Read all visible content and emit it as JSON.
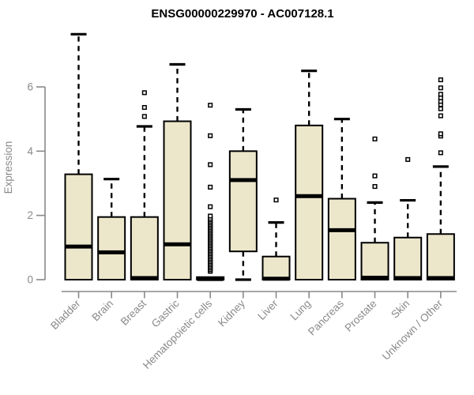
{
  "chart_data": {
    "type": "boxplot",
    "title": "ENSG00000229970 - AC007128.1",
    "ylabel": "Expression",
    "xlabel": "",
    "yticks": [
      0,
      2,
      4,
      6
    ],
    "ylim": [
      -0.4,
      7.9
    ],
    "grid": false,
    "legend": false,
    "categories": [
      "Bladder",
      "Brain",
      "Breast",
      "Gastric",
      "Hematopoietic cells",
      "Kidney",
      "Liver",
      "Lung",
      "Pancreas",
      "Prostate",
      "Skin",
      "Unknown / Other"
    ],
    "boxes": [
      {
        "category": "Bladder",
        "low": 0,
        "q1": 0,
        "median": 1.03,
        "q3": 3.28,
        "high": 7.64,
        "outliers": []
      },
      {
        "category": "Brain",
        "low": 0,
        "q1": 0,
        "median": 0.85,
        "q3": 1.95,
        "high": 3.13,
        "outliers": []
      },
      {
        "category": "Breast",
        "low": 0,
        "q1": 0,
        "median": 0.05,
        "q3": 1.95,
        "high": 4.77,
        "outliers": [
          5.08,
          5.36,
          5.82
        ]
      },
      {
        "category": "Gastric",
        "low": 0,
        "q1": 0,
        "median": 1.1,
        "q3": 4.93,
        "high": 6.7,
        "outliers": []
      },
      {
        "category": "Hematopoietic cells",
        "low": 0,
        "q1": 0,
        "median": 0.02,
        "q3": 0.08,
        "high": 0.1,
        "outliers": [
          0.26,
          0.31,
          0.36,
          0.41,
          0.46,
          0.51,
          0.56,
          0.61,
          0.66,
          0.71,
          0.76,
          0.81,
          0.86,
          0.91,
          0.96,
          1.01,
          1.06,
          1.11,
          1.16,
          1.21,
          1.26,
          1.31,
          1.36,
          1.41,
          1.46,
          1.51,
          1.56,
          1.61,
          1.66,
          1.71,
          1.76,
          1.81,
          1.86,
          1.91,
          1.98,
          2.27,
          2.88,
          3.58,
          4.48,
          5.43
        ]
      },
      {
        "category": "Kidney",
        "low": 0,
        "q1": 0.88,
        "median": 3.1,
        "q3": 4.0,
        "high": 5.3,
        "outliers": []
      },
      {
        "category": "Liver",
        "low": 0,
        "q1": 0,
        "median": 0.03,
        "q3": 0.72,
        "high": 1.78,
        "outliers": [
          2.48
        ]
      },
      {
        "category": "Lung",
        "low": 0,
        "q1": 0,
        "median": 2.6,
        "q3": 4.8,
        "high": 6.5,
        "outliers": []
      },
      {
        "category": "Pancreas",
        "low": 0,
        "q1": 0,
        "median": 1.54,
        "q3": 2.52,
        "high": 5.0,
        "outliers": []
      },
      {
        "category": "Prostate",
        "low": 0,
        "q1": 0,
        "median": 0.06,
        "q3": 1.15,
        "high": 2.4,
        "outliers": [
          2.9,
          3.23,
          4.38
        ]
      },
      {
        "category": "Skin",
        "low": 0,
        "q1": 0,
        "median": 0.05,
        "q3": 1.31,
        "high": 2.47,
        "outliers": [
          3.74
        ]
      },
      {
        "category": "Unknown / Other",
        "low": 0,
        "q1": 0,
        "median": 0.05,
        "q3": 1.42,
        "high": 3.52,
        "outliers": [
          3.95,
          4.47,
          4.54,
          5.1,
          5.32,
          5.45,
          5.55,
          5.66,
          5.77,
          5.97,
          6.22
        ]
      }
    ],
    "colors": {
      "box_fill": "#ECE7CB",
      "box_border": "#000000",
      "median": "#000000",
      "whisker": "#000000",
      "outlier_stroke": "#000000",
      "outlier_fill": "#ffffff",
      "axis": "#898989",
      "tick_label": "#898989",
      "title": "#000000",
      "background": "#ffffff"
    }
  }
}
